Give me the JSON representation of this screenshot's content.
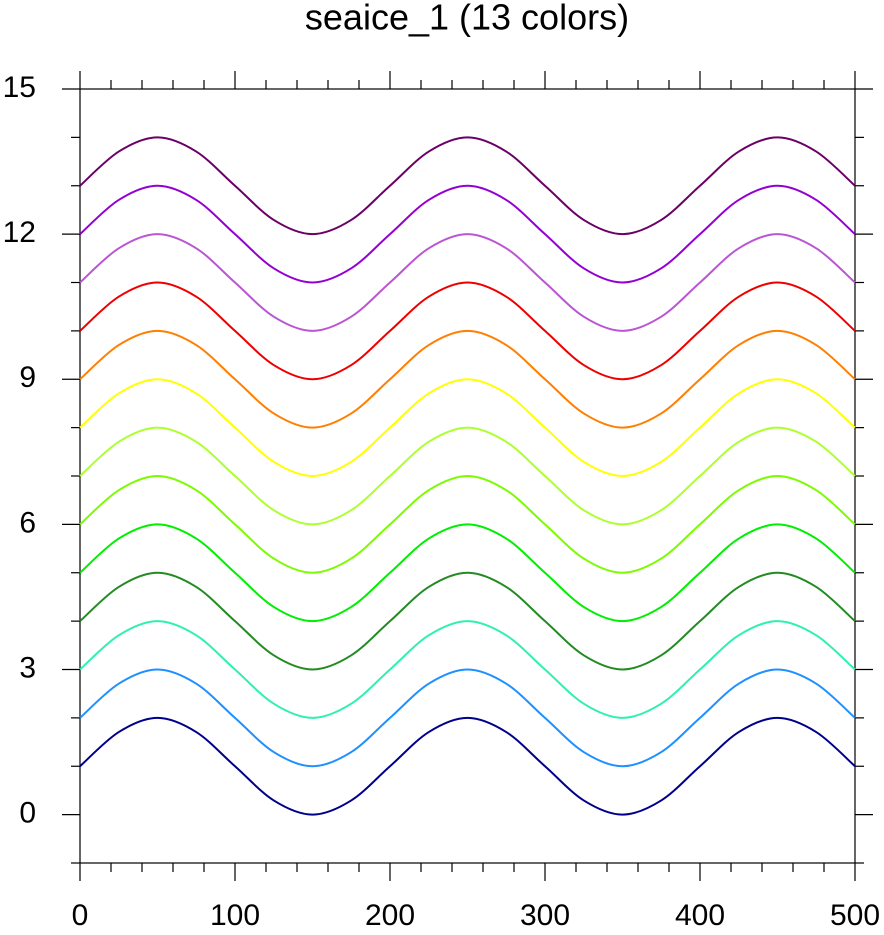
{
  "chart_data": {
    "type": "line",
    "title": "seaice_1 (13 colors)",
    "x": [
      0,
      25,
      50,
      75,
      100,
      125,
      150,
      175,
      200,
      225,
      250,
      275,
      300,
      325,
      350,
      375,
      400,
      425,
      450,
      475,
      500
    ],
    "series": [
      {
        "color": "#00008b",
        "values": [
          1,
          1.707,
          2,
          1.707,
          1,
          0.293,
          0,
          0.293,
          1,
          1.707,
          2,
          1.707,
          1,
          0.293,
          0,
          0.293,
          1,
          1.707,
          2,
          1.707,
          1
        ]
      },
      {
        "color": "#1e90ff",
        "values": [
          2,
          2.707,
          3,
          2.707,
          2,
          1.293,
          1,
          1.293,
          2,
          2.707,
          3,
          2.707,
          2,
          1.293,
          1,
          1.293,
          2,
          2.707,
          3,
          2.707,
          2
        ]
      },
      {
        "color": "#30f0b0",
        "values": [
          3,
          3.707,
          4,
          3.707,
          3,
          2.293,
          2,
          2.293,
          3,
          3.707,
          4,
          3.707,
          3,
          2.293,
          2,
          2.293,
          3,
          3.707,
          4,
          3.707,
          3
        ]
      },
      {
        "color": "#228b22",
        "values": [
          4,
          4.707,
          5,
          4.707,
          4,
          3.293,
          3,
          3.293,
          4,
          4.707,
          5,
          4.707,
          4,
          3.293,
          3,
          3.293,
          4,
          4.707,
          5,
          4.707,
          4
        ]
      },
      {
        "color": "#00ee00",
        "values": [
          5,
          5.707,
          6,
          5.707,
          5,
          4.293,
          4,
          4.293,
          5,
          5.707,
          6,
          5.707,
          5,
          4.293,
          4,
          4.293,
          5,
          5.707,
          6,
          5.707,
          5
        ]
      },
      {
        "color": "#7cfc00",
        "values": [
          6,
          6.707,
          7,
          6.707,
          6,
          5.293,
          5,
          5.293,
          6,
          6.707,
          7,
          6.707,
          6,
          5.293,
          5,
          5.293,
          6,
          6.707,
          7,
          6.707,
          6
        ]
      },
      {
        "color": "#adff2f",
        "values": [
          7,
          7.707,
          8,
          7.707,
          7,
          6.293,
          6,
          6.293,
          7,
          7.707,
          8,
          7.707,
          7,
          6.293,
          6,
          6.293,
          7,
          7.707,
          8,
          7.707,
          7
        ]
      },
      {
        "color": "#ffff00",
        "values": [
          8,
          8.707,
          9,
          8.707,
          8,
          7.293,
          7,
          7.293,
          8,
          8.707,
          9,
          8.707,
          8,
          7.293,
          7,
          7.293,
          8,
          8.707,
          9,
          8.707,
          8
        ]
      },
      {
        "color": "#ff7f00",
        "values": [
          9,
          9.707,
          10,
          9.707,
          9,
          8.293,
          8,
          8.293,
          9,
          9.707,
          10,
          9.707,
          9,
          8.293,
          8,
          8.293,
          9,
          9.707,
          10,
          9.707,
          9
        ]
      },
      {
        "color": "#ee0000",
        "values": [
          10,
          10.707,
          11,
          10.707,
          10,
          9.293,
          9,
          9.293,
          10,
          10.707,
          11,
          10.707,
          10,
          9.293,
          9,
          9.293,
          10,
          10.707,
          11,
          10.707,
          10
        ]
      },
      {
        "color": "#ba55d3",
        "values": [
          11,
          11.707,
          12,
          11.707,
          11,
          10.293,
          10,
          10.293,
          11,
          11.707,
          12,
          11.707,
          11,
          10.293,
          10,
          10.293,
          11,
          11.707,
          12,
          11.707,
          11
        ]
      },
      {
        "color": "#9400d3",
        "values": [
          12,
          12.707,
          13,
          12.707,
          12,
          11.293,
          11,
          11.293,
          12,
          12.707,
          13,
          12.707,
          12,
          11.293,
          11,
          11.293,
          12,
          12.707,
          13,
          12.707,
          12
        ]
      },
      {
        "color": "#6b0066",
        "values": [
          13,
          13.707,
          14,
          13.707,
          13,
          12.293,
          12,
          12.293,
          13,
          13.707,
          14,
          13.707,
          13,
          12.293,
          12,
          12.293,
          13,
          13.707,
          14,
          13.707,
          13
        ]
      }
    ],
    "xlim": [
      0,
      500
    ],
    "ylim": [
      -1,
      15
    ],
    "xticks": [
      0,
      100,
      200,
      300,
      400,
      500
    ],
    "yticks": [
      0,
      3,
      6,
      9,
      12,
      15
    ],
    "xminorticks": [
      20,
      40,
      60,
      80,
      120,
      140,
      160,
      180,
      220,
      240,
      260,
      280,
      320,
      340,
      360,
      380,
      420,
      440,
      460,
      480
    ],
    "yminorticks": [
      -1,
      1,
      2,
      4,
      5,
      7,
      8,
      10,
      11,
      13,
      14
    ],
    "grid": false
  }
}
